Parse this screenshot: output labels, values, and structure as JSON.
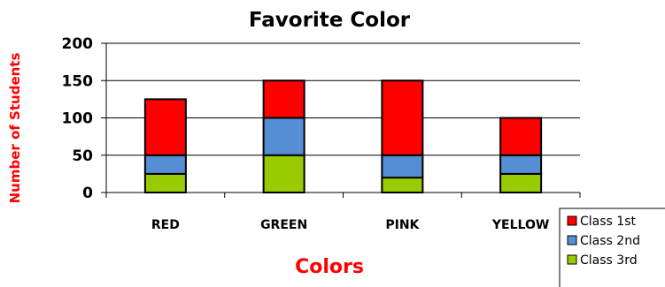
{
  "chart_data": {
    "type": "bar",
    "stacked": true,
    "title": "Favorite Color",
    "xlabel": "Colors",
    "ylabel": "Number of Students",
    "categories": [
      "RED",
      "GREEN",
      "PINK",
      "YELLOW"
    ],
    "ylim": [
      0,
      200
    ],
    "yticks": [
      0,
      50,
      100,
      150,
      200
    ],
    "grid": true,
    "legend": "bottom-right",
    "series": [
      {
        "name": "Class 3rd",
        "values": [
          25,
          50,
          20,
          25
        ],
        "color": "#99cc00"
      },
      {
        "name": "Class 2nd",
        "values": [
          25,
          50,
          30,
          25
        ],
        "color": "#558ed5"
      },
      {
        "name": "Class 1st",
        "values": [
          75,
          50,
          100,
          50
        ],
        "color": "#ff0000"
      }
    ],
    "legend_order": [
      "Class 1st",
      "Class 2nd",
      "Class 3rd"
    ]
  }
}
